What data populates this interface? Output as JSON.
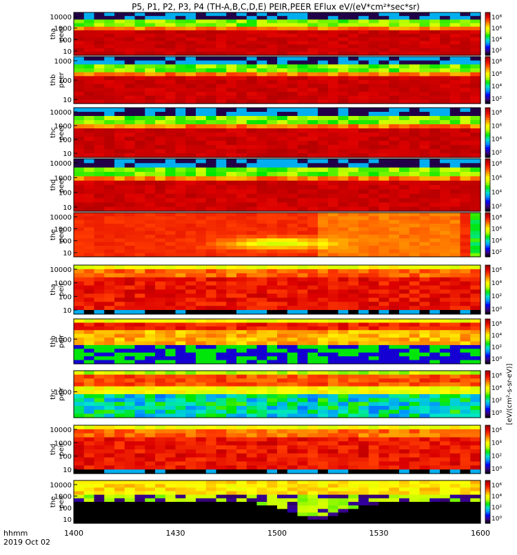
{
  "title": "P5, P1, P2, P3, P4 (TH-A,B,C,D,E) PEIR,PEER EFlux eV/(eV*cm²*sec*sr)",
  "footer": {
    "unit_label": "hhmm",
    "date_label": "2019 Oct 02"
  },
  "chart_data": {
    "type": "heatmap",
    "x": {
      "ticks": [
        "1400",
        "1430",
        "1500",
        "1530",
        "1600"
      ],
      "range": [
        "14:00",
        "16:00"
      ]
    },
    "colorbar_label": "[eV/(cm²-s-sr-eV)]",
    "panels": [
      {
        "name": "tha peer",
        "label_line1": "tha",
        "label_line2": "peer",
        "yticks": [
          "10000",
          "1000",
          "100",
          "10"
        ],
        "cbar_ticks": [
          "10⁸",
          "10⁶",
          "10⁴",
          "10²"
        ],
        "pattern": "electron"
      },
      {
        "name": "thb peer",
        "label_line1": "thb",
        "label_line2": "peer",
        "yticks": [
          "1000",
          "100",
          "10"
        ],
        "cbar_ticks": [
          "10⁸",
          "10⁶",
          "10⁴",
          "10²"
        ],
        "pattern": "electron"
      },
      {
        "name": "thc peer",
        "label_line1": "thc",
        "label_line2": "peer",
        "yticks": [
          "10000",
          "1000",
          "100",
          "10"
        ],
        "cbar_ticks": [
          "10⁸",
          "10⁶",
          "10⁴",
          "10²"
        ],
        "pattern": "electron"
      },
      {
        "name": "thd peer",
        "label_line1": "thd",
        "label_line2": "peer",
        "yticks": [
          "10000",
          "1000",
          "100",
          "10"
        ],
        "cbar_ticks": [
          "10⁸",
          "10⁶",
          "10⁴",
          "10²"
        ],
        "pattern": "electron"
      },
      {
        "name": "the peer",
        "label_line1": "the",
        "label_line2": "peer",
        "yticks": [
          "10000",
          "1000",
          "100",
          "10"
        ],
        "cbar_ticks": [
          "10⁸",
          "10⁶",
          "10⁴",
          "10²"
        ],
        "pattern": "the_electron"
      },
      {
        "name": "tha peir",
        "label_line1": "tha",
        "label_line2": "peir",
        "yticks": [
          "10000",
          "1000",
          "100",
          "10"
        ],
        "cbar_ticks": [
          "10⁶",
          "10⁴",
          "10²",
          "10⁰"
        ],
        "pattern": "ion"
      },
      {
        "name": "thb peir",
        "label_line1": "thb",
        "label_line2": "peir",
        "yticks": [
          "1000"
        ],
        "cbar_ticks": [
          "10⁶",
          "10⁴",
          "10²",
          "10⁰"
        ],
        "pattern": "ion_narrow"
      },
      {
        "name": "thc peir",
        "label_line1": "thc",
        "label_line2": "peir",
        "yticks": [
          "1000"
        ],
        "cbar_ticks": [
          "10⁶",
          "10⁴",
          "10²",
          "10⁰"
        ],
        "pattern": "ion_narrow2"
      },
      {
        "name": "thd peir",
        "label_line1": "thd",
        "label_line2": "peir",
        "yticks": [
          "10000",
          "1000",
          "100",
          "10"
        ],
        "cbar_ticks": [
          "10⁶",
          "10⁴",
          "10²",
          "10⁰"
        ],
        "pattern": "ion"
      },
      {
        "name": "the peir",
        "label_line1": "the",
        "label_line2": "peir",
        "yticks": [
          "10000",
          "1000",
          "100",
          "10"
        ],
        "cbar_ticks": [
          "10⁶",
          "10⁴",
          "10²",
          "10⁰"
        ],
        "pattern": "the_ion"
      }
    ]
  }
}
